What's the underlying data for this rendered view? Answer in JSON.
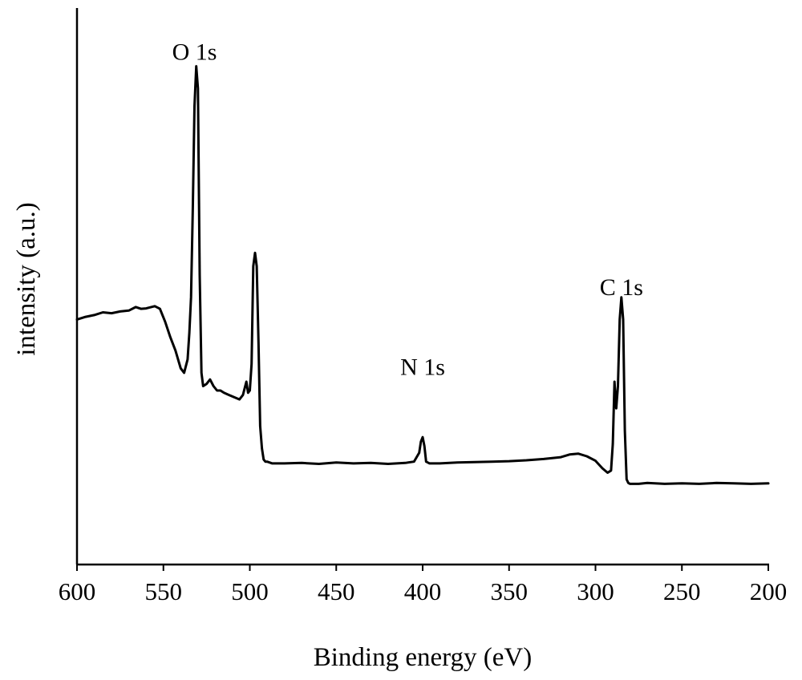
{
  "chart_data": {
    "type": "line",
    "title": "",
    "xlabel": "Binding energy (eV)",
    "ylabel": "intensity (a.u.)",
    "xlim": [
      600,
      200
    ],
    "x_reversed": true,
    "ylim": [
      0,
      100
    ],
    "y_ticks_shown": false,
    "x_ticks": [
      600,
      550,
      500,
      450,
      400,
      350,
      300,
      250,
      200
    ],
    "x_tick_labels": [
      "600",
      "550",
      "500",
      "450",
      "400",
      "350",
      "300",
      "250",
      "200"
    ],
    "grid": false,
    "legend": "none",
    "line_color": "#000000",
    "annotations": [
      {
        "text": "O 1s",
        "x": 532,
        "y": 98.5
      },
      {
        "text": "N 1s",
        "x": 400,
        "y": 27.5
      },
      {
        "text": "C 1s",
        "x": 285,
        "y": 45.5
      }
    ],
    "series": [
      {
        "x": [
          600,
          595,
          590,
          585,
          580,
          575,
          570,
          566,
          563,
          560,
          555,
          552,
          549,
          546,
          543,
          540,
          538,
          536,
          535,
          534,
          533,
          532,
          531,
          530,
          529,
          528,
          527,
          525,
          523,
          521,
          519,
          517,
          515,
          512,
          509,
          506,
          504,
          502,
          501,
          500,
          499,
          498,
          497,
          496,
          495,
          494,
          493,
          492,
          491,
          490,
          487,
          480,
          470,
          460,
          450,
          440,
          430,
          420,
          410,
          405,
          402,
          401,
          400,
          399,
          398,
          396,
          390,
          380,
          370,
          360,
          350,
          340,
          330,
          320,
          315,
          310,
          305,
          300,
          296,
          293,
          291,
          290,
          289,
          288,
          287,
          286,
          285,
          284,
          283,
          282,
          281,
          280,
          275,
          270,
          260,
          250,
          240,
          230,
          220,
          210,
          200
        ],
        "y": [
          40,
          40.6,
          41,
          41.6,
          41.4,
          41.8,
          42,
          42.8,
          42.4,
          42.5,
          43,
          42.4,
          39.5,
          36,
          33,
          29,
          28,
          31,
          37,
          45,
          65,
          88,
          97,
          92,
          50,
          28,
          25,
          25.5,
          26.5,
          25,
          24,
          24,
          23.5,
          23,
          22.5,
          22,
          23,
          26,
          23.5,
          24,
          30,
          52,
          55,
          52,
          35,
          16,
          11,
          8.5,
          8,
          8,
          7.6,
          7.6,
          7.7,
          7.5,
          7.8,
          7.6,
          7.7,
          7.5,
          7.7,
          8,
          10,
          12.5,
          13.5,
          11.5,
          8,
          7.6,
          7.6,
          7.8,
          7.9,
          8,
          8.1,
          8.3,
          8.6,
          9,
          9.6,
          9.8,
          9.2,
          8.2,
          6.5,
          5.5,
          6,
          12,
          26,
          20,
          25,
          40,
          45,
          40,
          15,
          4,
          3.2,
          3,
          3,
          3.2,
          3,
          3.1,
          3,
          3.2,
          3.1,
          3,
          3.1
        ]
      }
    ]
  }
}
